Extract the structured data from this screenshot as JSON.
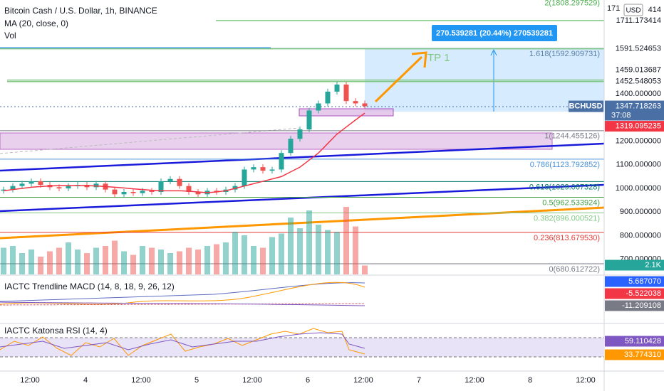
{
  "header": {
    "title": "Bitcoin Cash / U.S. Dollar, 1h, BINANCE",
    "ma": "MA (20, close, 0)",
    "vol": "Vol"
  },
  "price_axis": {
    "currency": "USD",
    "partial_top": [
      "171",
      "414"
    ],
    "levels": [
      {
        "label": "1711.173414",
        "color": "#81c784"
      },
      {
        "label": "1591.524653",
        "color": "#81c784"
      },
      {
        "label": "1459.013687",
        "color": "#81c784"
      },
      {
        "label": "1452.548053",
        "color": "#81c784"
      }
    ],
    "ticks": [
      "1400.000000",
      "1200.000000",
      "1100.000000",
      "1000.000000",
      "900.000000",
      "800.000000",
      "700.000000"
    ],
    "symbol": "BCHUSD",
    "last": "1347.718263",
    "countdown": "37:08",
    "ma_value": "1319.095235",
    "volume": "2.1K"
  },
  "fib": [
    {
      "label": "2(1808.297529)",
      "color": "#4caf50"
    },
    {
      "label": "1.618(1592.909731)",
      "color": "#5b7fa8"
    },
    {
      "label": "1(1244.455126)",
      "color": "#787b86"
    },
    {
      "label": "0.786(1123.792852)",
      "color": "#4a90d9"
    },
    {
      "label": "0.618(1029.067328)",
      "color": "#00796b"
    },
    {
      "label": "0.5(962.533924)",
      "color": "#43a047"
    },
    {
      "label": "0.382(896.000521)",
      "color": "#81c784"
    },
    {
      "label": "0.236(813.679530)",
      "color": "#e53935"
    },
    {
      "label": "0(680.612722)",
      "color": "#787b86"
    }
  ],
  "position": {
    "label": "270.539281 (20.44%) 270539281",
    "target": "TP 1"
  },
  "time_axis": [
    "12:00",
    "4",
    "12:00",
    "5",
    "12:00",
    "6",
    "12:00",
    "7",
    "12:00",
    "8",
    "12:00"
  ],
  "candles": {
    "close": [
      995,
      1010,
      1020,
      1030,
      1015,
      1005,
      1000,
      1010,
      1015,
      1005,
      1020,
      995,
      975,
      985,
      980,
      990,
      985,
      1030,
      1040,
      1010,
      985,
      975,
      990,
      985,
      995,
      1010,
      1080,
      1090,
      1075,
      1080,
      1150,
      1210,
      1250,
      1330,
      1360,
      1410,
      1440,
      1370,
      1360,
      1348
    ],
    "volume": [
      1.5,
      1.6,
      1.2,
      1.4,
      1.0,
      1.3,
      1.5,
      1.8,
      1.4,
      1.2,
      1.5,
      1.6,
      1.9,
      1.3,
      1.1,
      1.6,
      1.5,
      1.4,
      1.2,
      1.3,
      1.5,
      1.4,
      1.6,
      1.7,
      1.8,
      2.4,
      2.2,
      1.6,
      1.5,
      2.1,
      2.3,
      3.2,
      2.6,
      3.6,
      2.8,
      2.5,
      2.4,
      3.8,
      2.7,
      0.5
    ],
    "ma": [
      990,
      995,
      1000,
      1005,
      1008,
      1010,
      1012,
      1012,
      1012,
      1012,
      1010,
      1008,
      1005,
      1002,
      998,
      995,
      992,
      990,
      990,
      990,
      988,
      985,
      982,
      985,
      990,
      1000,
      1010,
      1020,
      1030,
      1040,
      1050,
      1070,
      1090,
      1120,
      1150,
      1190,
      1230,
      1260,
      1290,
      1319
    ]
  },
  "macd": {
    "title": "IACTC Trendline MACD (14, 8, 18, 9, 26, 12)",
    "values": [
      {
        "label": "5.687070",
        "color": "#2962ff"
      },
      {
        "label": "-5.522038",
        "color": "#f23645"
      },
      {
        "label": "-11.209108",
        "color": "#787b86"
      }
    ]
  },
  "rsi": {
    "title": "IACTC Katonsa RSI (14, 4)",
    "values": [
      {
        "label": "59.110428",
        "color": "#7e57c2"
      },
      {
        "label": "33.774310",
        "color": "#ff9800"
      }
    ]
  }
}
